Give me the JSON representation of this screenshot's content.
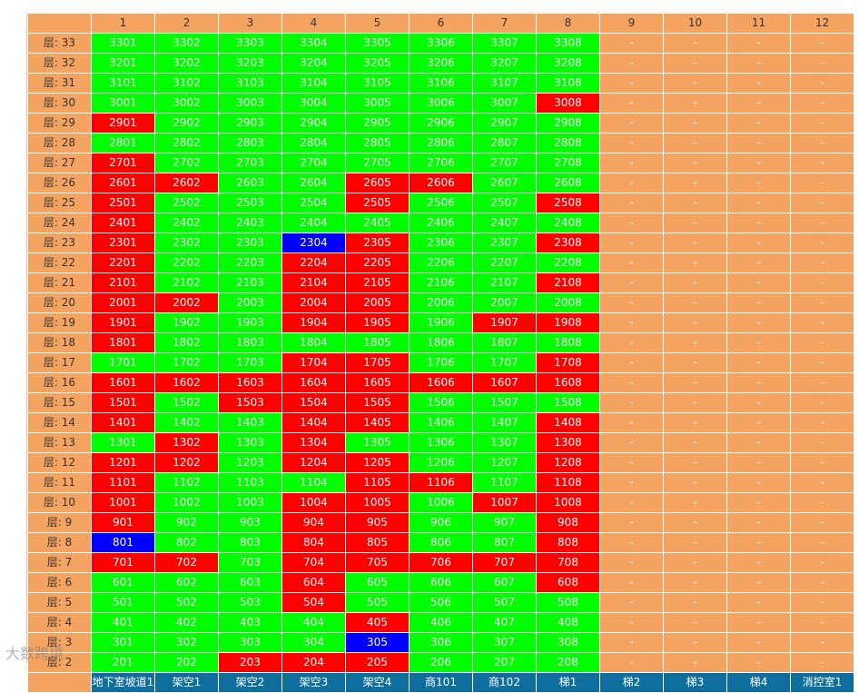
{
  "colors": {
    "available": "#00ff00",
    "sold": "#ff0000",
    "selected": "#0000ff",
    "empty": "#f4a460",
    "header": "#f4a460",
    "footer": "#0e6f9e"
  },
  "floor_prefix": "层: ",
  "columns": [
    "1",
    "2",
    "3",
    "4",
    "5",
    "6",
    "7",
    "8",
    "9",
    "10",
    "11",
    "12"
  ],
  "units": [
    "地下室坡道1",
    "架空1",
    "架空2",
    "架空3",
    "架空4",
    "商101",
    "商102",
    "梯1",
    "梯2",
    "梯3",
    "梯4",
    "消控室1"
  ],
  "empty_text": "-",
  "floors": [
    {
      "floor": "33",
      "rooms": [
        "3301",
        "3302",
        "3303",
        "3304",
        "3305",
        "3306",
        "3307",
        "3308"
      ],
      "status": "gggggggg"
    },
    {
      "floor": "32",
      "rooms": [
        "3201",
        "3202",
        "3203",
        "3204",
        "3205",
        "3206",
        "3207",
        "3208"
      ],
      "status": "gggggggg"
    },
    {
      "floor": "31",
      "rooms": [
        "3101",
        "3102",
        "3103",
        "3104",
        "3105",
        "3106",
        "3107",
        "3108"
      ],
      "status": "gggggggg"
    },
    {
      "floor": "30",
      "rooms": [
        "3001",
        "3002",
        "3003",
        "3004",
        "3005",
        "3006",
        "3007",
        "3008"
      ],
      "status": "gggggggr"
    },
    {
      "floor": "29",
      "rooms": [
        "2901",
        "2902",
        "2903",
        "2904",
        "2905",
        "2906",
        "2907",
        "2908"
      ],
      "status": "rggggggg"
    },
    {
      "floor": "28",
      "rooms": [
        "2801",
        "2802",
        "2803",
        "2804",
        "2805",
        "2806",
        "2807",
        "2808"
      ],
      "status": "gggggggg"
    },
    {
      "floor": "27",
      "rooms": [
        "2701",
        "2702",
        "2703",
        "2704",
        "2705",
        "2706",
        "2707",
        "2708"
      ],
      "status": "rggggggg"
    },
    {
      "floor": "26",
      "rooms": [
        "2601",
        "2602",
        "2603",
        "2604",
        "2605",
        "2606",
        "2607",
        "2608"
      ],
      "status": "rrggrrgg"
    },
    {
      "floor": "25",
      "rooms": [
        "2501",
        "2502",
        "2503",
        "2504",
        "2505",
        "2506",
        "2507",
        "2508"
      ],
      "status": "rgggrggr"
    },
    {
      "floor": "24",
      "rooms": [
        "2401",
        "2402",
        "2403",
        "2404",
        "2405",
        "2406",
        "2407",
        "2408"
      ],
      "status": "rggggggg"
    },
    {
      "floor": "23",
      "rooms": [
        "2301",
        "2302",
        "2303",
        "2304",
        "2305",
        "2306",
        "2307",
        "2308"
      ],
      "status": "rggbrggr"
    },
    {
      "floor": "22",
      "rooms": [
        "2201",
        "2202",
        "2203",
        "2204",
        "2205",
        "2206",
        "2207",
        "2208"
      ],
      "status": "rggrrggg"
    },
    {
      "floor": "21",
      "rooms": [
        "2101",
        "2102",
        "2103",
        "2104",
        "2105",
        "2106",
        "2107",
        "2108"
      ],
      "status": "rggrrggr"
    },
    {
      "floor": "20",
      "rooms": [
        "2001",
        "2002",
        "2003",
        "2004",
        "2005",
        "2006",
        "2007",
        "2008"
      ],
      "status": "rrgrrggg"
    },
    {
      "floor": "19",
      "rooms": [
        "1901",
        "1902",
        "1903",
        "1904",
        "1905",
        "1906",
        "1907",
        "1908"
      ],
      "status": "rggrrgrr"
    },
    {
      "floor": "18",
      "rooms": [
        "1801",
        "1802",
        "1803",
        "1804",
        "1805",
        "1806",
        "1807",
        "1808"
      ],
      "status": "rggggggg"
    },
    {
      "floor": "17",
      "rooms": [
        "1701",
        "1702",
        "1703",
        "1704",
        "1705",
        "1706",
        "1707",
        "1708"
      ],
      "status": "gggrrggr"
    },
    {
      "floor": "16",
      "rooms": [
        "1601",
        "1602",
        "1603",
        "1604",
        "1605",
        "1606",
        "1607",
        "1608"
      ],
      "status": "rrrrrrrr"
    },
    {
      "floor": "15",
      "rooms": [
        "1501",
        "1502",
        "1503",
        "1504",
        "1505",
        "1506",
        "1507",
        "1508"
      ],
      "status": "rgrrrggg"
    },
    {
      "floor": "14",
      "rooms": [
        "1401",
        "1402",
        "1403",
        "1404",
        "1405",
        "1406",
        "1407",
        "1408"
      ],
      "status": "rggrrggr"
    },
    {
      "floor": "13",
      "rooms": [
        "1301",
        "1302",
        "1303",
        "1304",
        "1305",
        "1306",
        "1307",
        "1308"
      ],
      "status": "grgrgggr"
    },
    {
      "floor": "12",
      "rooms": [
        "1201",
        "1202",
        "1203",
        "1204",
        "1205",
        "1206",
        "1207",
        "1208"
      ],
      "status": "rrgrrggr"
    },
    {
      "floor": "11",
      "rooms": [
        "1101",
        "1102",
        "1103",
        "1104",
        "1105",
        "1106",
        "1107",
        "1108"
      ],
      "status": "rgggrrgr"
    },
    {
      "floor": "10",
      "rooms": [
        "1001",
        "1002",
        "1003",
        "1004",
        "1005",
        "1006",
        "1007",
        "1008"
      ],
      "status": "rggrrgrr"
    },
    {
      "floor": "9",
      "rooms": [
        "901",
        "902",
        "903",
        "904",
        "905",
        "906",
        "907",
        "908"
      ],
      "status": "rggrrggr"
    },
    {
      "floor": "8",
      "rooms": [
        "801",
        "802",
        "803",
        "804",
        "805",
        "806",
        "807",
        "808"
      ],
      "status": "bggrrggr"
    },
    {
      "floor": "7",
      "rooms": [
        "701",
        "702",
        "703",
        "704",
        "705",
        "706",
        "707",
        "708"
      ],
      "status": "rrgrrrrr"
    },
    {
      "floor": "6",
      "rooms": [
        "601",
        "602",
        "603",
        "604",
        "605",
        "606",
        "607",
        "608"
      ],
      "status": "gggrgggr"
    },
    {
      "floor": "5",
      "rooms": [
        "501",
        "502",
        "503",
        "504",
        "505",
        "506",
        "507",
        "508"
      ],
      "status": "gggrgggg"
    },
    {
      "floor": "4",
      "rooms": [
        "401",
        "402",
        "403",
        "404",
        "405",
        "406",
        "407",
        "408"
      ],
      "status": "ggggrggg"
    },
    {
      "floor": "3",
      "rooms": [
        "301",
        "302",
        "303",
        "304",
        "305",
        "306",
        "307",
        "308"
      ],
      "status": "ggggbggg"
    },
    {
      "floor": "2",
      "rooms": [
        "201",
        "202",
        "203",
        "204",
        "205",
        "206",
        "207",
        "208"
      ],
      "status": "ggrrrggg"
    }
  ],
  "watermark": "大数跨境"
}
